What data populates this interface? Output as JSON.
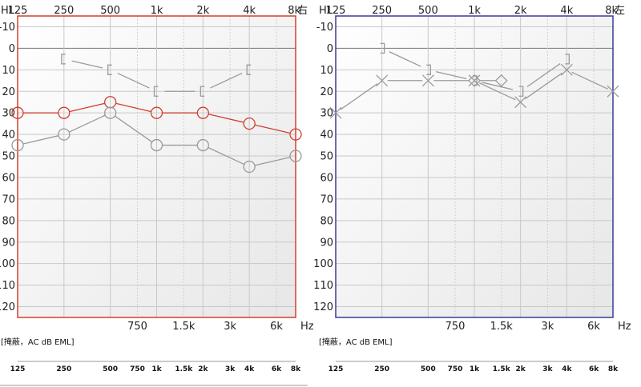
{
  "charts": [
    {
      "ear_label": "右",
      "frame_color": "#d0402f",
      "masking_label": "[掩蔽，AC dB EML]"
    },
    {
      "ear_label": "左",
      "frame_color": "#3a3a9a",
      "masking_label": "[掩蔽，AC dB EML]"
    }
  ],
  "axis": {
    "hl_label": "HL",
    "hz_label": "Hz",
    "top_ticks": [
      "125",
      "250",
      "500",
      "1k",
      "2k",
      "4k",
      "8k"
    ],
    "bottom_ticks": [
      "750",
      "1.5k",
      "3k",
      "6k"
    ],
    "y_ticks": [
      "-10",
      "0",
      "10",
      "20",
      "30",
      "40",
      "50",
      "60",
      "70",
      "80",
      "90",
      "100",
      "110",
      "120"
    ],
    "table_ticks": [
      "125",
      "250",
      "500",
      "750",
      "1k",
      "1.5k",
      "2k",
      "3k",
      "4k",
      "6k",
      "8k"
    ]
  },
  "chart_data": [
    {
      "type": "line",
      "title": "右",
      "xlabel": "Hz",
      "ylabel": "HL",
      "ylim": [
        -10,
        120
      ],
      "y_inverted": true,
      "x_scale": "log",
      "x_ticks_major": [
        "125",
        "250",
        "500",
        "1k",
        "2k",
        "4k",
        "8k"
      ],
      "x_ticks_minor": [
        "750",
        "1.5k",
        "3k",
        "6k"
      ],
      "series": [
        {
          "name": "AC right",
          "marker": "circle",
          "color": "#d0402f",
          "x": [
            125,
            250,
            500,
            1000,
            2000,
            4000,
            8000
          ],
          "values": [
            30,
            30,
            25,
            30,
            30,
            35,
            40
          ]
        },
        {
          "name": "AC gray",
          "marker": "circle",
          "color": "#9a9a9a",
          "x": [
            125,
            250,
            500,
            1000,
            2000,
            4000,
            8000
          ],
          "values": [
            45,
            40,
            30,
            45,
            45,
            55,
            50
          ]
        },
        {
          "name": "BC right",
          "marker": "bracket-left",
          "color": "#9a9a9a",
          "x": [
            250,
            500,
            1000,
            2000,
            4000
          ],
          "values": [
            5,
            10,
            20,
            20,
            10
          ]
        }
      ]
    },
    {
      "type": "line",
      "title": "左",
      "xlabel": "Hz",
      "ylabel": "HL",
      "ylim": [
        -10,
        120
      ],
      "y_inverted": true,
      "x_scale": "log",
      "x_ticks_major": [
        "125",
        "250",
        "500",
        "1k",
        "2k",
        "4k",
        "8k"
      ],
      "x_ticks_minor": [
        "750",
        "1.5k",
        "3k",
        "6k"
      ],
      "series": [
        {
          "name": "AC left",
          "marker": "cross",
          "color": "#9a9a9a",
          "x": [
            125,
            250,
            500,
            1000,
            2000,
            4000,
            8000
          ],
          "values": [
            30,
            15,
            15,
            15,
            25,
            10,
            20
          ]
        },
        {
          "name": "BC left",
          "marker": "bracket-right",
          "color": "#9a9a9a",
          "x": [
            250,
            500,
            1000,
            2000,
            4000
          ],
          "values": [
            0,
            10,
            15,
            20,
            5
          ]
        },
        {
          "name": "Masked",
          "marker": "diamond",
          "color": "#9a9a9a",
          "x": [
            1000,
            1500
          ],
          "values": [
            15,
            15
          ]
        }
      ]
    }
  ]
}
